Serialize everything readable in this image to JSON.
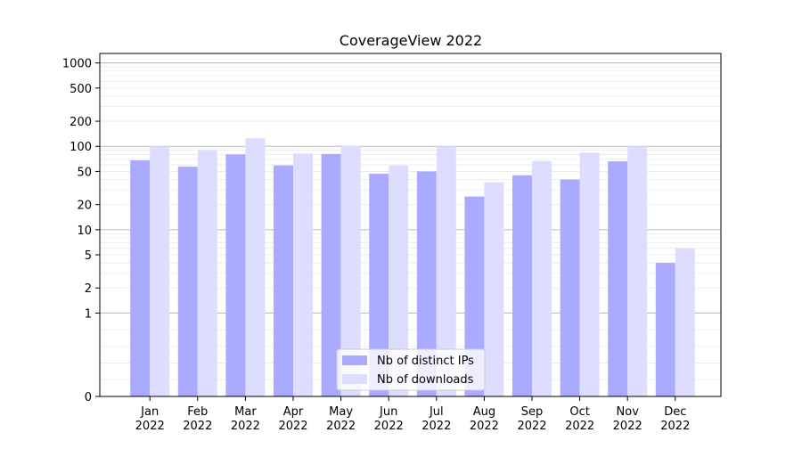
{
  "chart_data": {
    "type": "bar",
    "title": "CoverageView 2022",
    "xlabel": "",
    "ylabel": "",
    "yscale": "symlog",
    "ylim": [
      0,
      1300
    ],
    "yticks": [
      0,
      1,
      2,
      5,
      10,
      20,
      50,
      100,
      200,
      500,
      1000
    ],
    "grid": true,
    "legend_position": "lower center",
    "categories": [
      [
        "Jan",
        "2022"
      ],
      [
        "Feb",
        "2022"
      ],
      [
        "Mar",
        "2022"
      ],
      [
        "Apr",
        "2022"
      ],
      [
        "May",
        "2022"
      ],
      [
        "Jun",
        "2022"
      ],
      [
        "Jul",
        "2022"
      ],
      [
        "Aug",
        "2022"
      ],
      [
        "Sep",
        "2022"
      ],
      [
        "Oct",
        "2022"
      ],
      [
        "Nov",
        "2022"
      ],
      [
        "Dec",
        "2022"
      ]
    ],
    "series": [
      {
        "name": "Nb of distinct IPs",
        "color": "#aaaaff",
        "values": [
          68,
          57,
          80,
          59,
          81,
          47,
          50,
          25,
          45,
          40,
          66,
          4
        ]
      },
      {
        "name": "Nb of downloads",
        "color": "#ddddff",
        "values": [
          100,
          90,
          125,
          82,
          102,
          59,
          100,
          37,
          67,
          84,
          100,
          6
        ]
      }
    ]
  }
}
